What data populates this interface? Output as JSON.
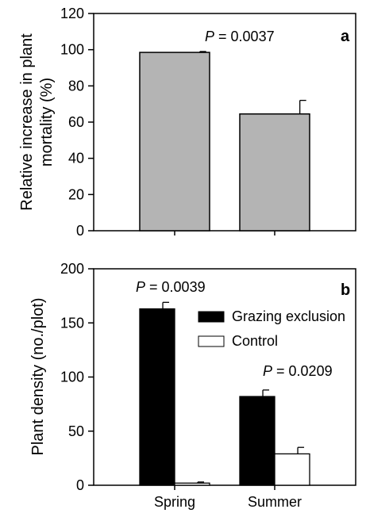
{
  "chart_data": [
    {
      "type": "bar",
      "panel_label": "a",
      "ylabel_lines": [
        "Relative increase in plant",
        "mortality (%)"
      ],
      "ylim": [
        0,
        120
      ],
      "yticks": [
        0,
        20,
        40,
        60,
        80,
        100,
        120
      ],
      "categories": [
        "Spring",
        "Summer"
      ],
      "series": [
        {
          "values": [
            98.5,
            64.5
          ],
          "errors": [
            0.5,
            7.5
          ],
          "color": "#b4b4b4"
        }
      ],
      "annotations": [
        {
          "p_prefix": "P",
          "text": " = 0.0037"
        }
      ],
      "grid": false
    },
    {
      "type": "bar",
      "panel_label": "b",
      "ylabel": "Plant density (no./plot)",
      "ylim": [
        0,
        200
      ],
      "yticks": [
        0,
        50,
        100,
        150,
        200
      ],
      "categories": [
        "Spring",
        "Summer"
      ],
      "series": [
        {
          "name": "Grazing exclusion",
          "values": [
            163,
            82
          ],
          "errors": [
            6,
            6
          ],
          "color": "#000000"
        },
        {
          "name": "Control",
          "values": [
            2,
            29
          ],
          "errors": [
            1,
            6
          ],
          "color": "#ffffff"
        }
      ],
      "annotations": [
        {
          "p_prefix": "P",
          "text": " = 0.0039"
        },
        {
          "p_prefix": "P",
          "text": " = 0.0209"
        }
      ],
      "legend_position": "top-right",
      "grid": false
    }
  ]
}
